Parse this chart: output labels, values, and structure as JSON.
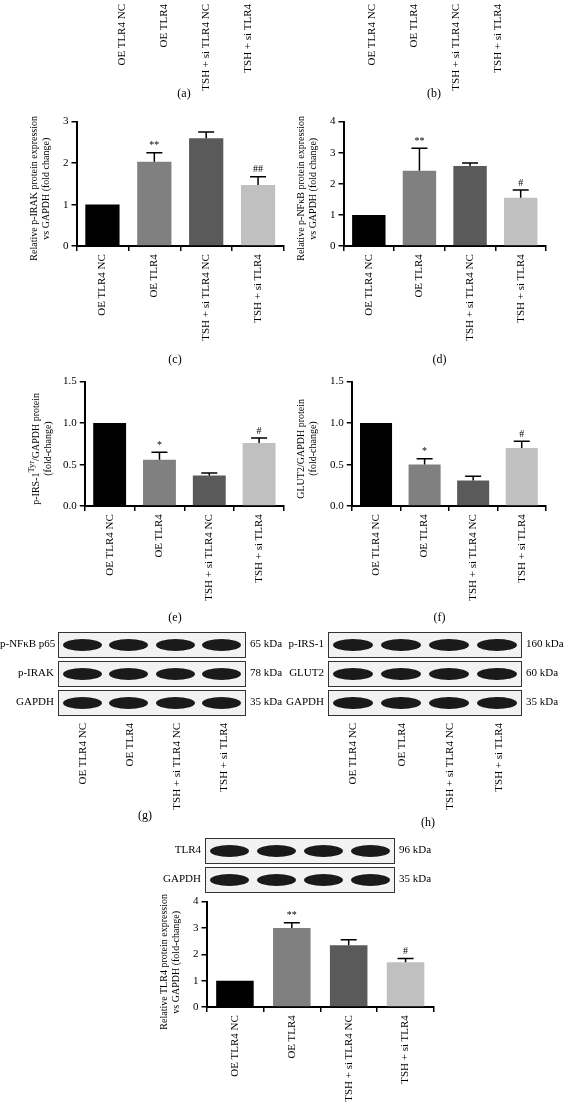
{
  "chart_data": [
    {
      "type": "other",
      "categories": [
        "OE TLR4 NC",
        "OE TLR4",
        "TSH + si TLR4 NC",
        "TSH + si TLR4"
      ],
      "annotations": [
        "(a)"
      ]
    },
    {
      "type": "other",
      "categories": [
        "OE TLR4 NC",
        "OE TLR4",
        "TSH + si TLR4 NC",
        "TSH + si TLR4"
      ],
      "annotations": [
        "(b)"
      ]
    },
    {
      "type": "bar",
      "ylabel": "Relative p-IRAK protein expression\nvs GAPDH (fold change)",
      "categories": [
        "OE TLR4 NC",
        "OE TLR4",
        "TSH + si TLR4 NC",
        "TSH + si TLR4"
      ],
      "values": [
        1,
        2.03,
        2.6,
        1.47
      ],
      "errors": [
        null,
        0.22,
        0.15,
        0.2
      ],
      "colors": [
        "#000000",
        "#808080",
        "#5a5a5a",
        "#c0c0c0"
      ],
      "ylim": [
        0,
        3
      ],
      "yticks": [
        0,
        1,
        2,
        3
      ],
      "grid": false,
      "annotations": [
        {
          "text": "**",
          "x": "OE TLR4",
          "y": 2.25
        },
        {
          "text": "##",
          "x": "TSH + si TLR4",
          "y": 1.67
        },
        "(c)"
      ]
    },
    {
      "type": "bar",
      "ylabel": "Relative p-NFκB protein expression\nvs GAPDH (fold change)",
      "categories": [
        "OE TLR4 NC",
        "OE TLR4",
        "TSH + si TLR4 NC",
        "TSH + si TLR4"
      ],
      "values": [
        1,
        2.42,
        2.57,
        1.55
      ],
      "errors": [
        null,
        0.72,
        0.1,
        0.25
      ],
      "colors": [
        "#000000",
        "#808080",
        "#5a5a5a",
        "#c0c0c0"
      ],
      "ylim": [
        0,
        4
      ],
      "yticks": [
        0,
        1,
        2,
        3,
        4
      ],
      "grid": false,
      "annotations": [
        {
          "text": "**",
          "x": "OE TLR4",
          "y": 3.14
        },
        {
          "text": "#",
          "x": "TSH + si TLR4",
          "y": 1.8
        },
        "(d)"
      ]
    },
    {
      "type": "bar",
      "ylabel": "p-IRS-1$^{Tyr}$/GAPDH protein\n(fold-change)",
      "categories": [
        "OE TLR4 NC",
        "OE TLR4",
        "TSH + si TLR4 NC",
        "TSH + si TLR4"
      ],
      "values": [
        1,
        0.56,
        0.37,
        0.76
      ],
      "errors": [
        null,
        0.09,
        0.03,
        0.06
      ],
      "colors": [
        "#000000",
        "#808080",
        "#5a5a5a",
        "#c0c0c0"
      ],
      "ylim": [
        0,
        1.5
      ],
      "yticks": [
        {
          "value": 0,
          "label": "0.0"
        },
        {
          "value": 0.5,
          "label": "0.5"
        },
        {
          "value": 1,
          "label": "1.0"
        },
        {
          "value": 1.5,
          "label": "1.5"
        }
      ],
      "grid": false,
      "annotations": [
        {
          "text": "*",
          "x": "OE TLR4",
          "y": 0.65
        },
        {
          "text": "#",
          "x": "TSH + si TLR4",
          "y": 0.82
        },
        "(e)"
      ]
    },
    {
      "type": "bar",
      "ylabel": "GLUT2/GAPDH protein\n(fold-change)",
      "categories": [
        "OE TLR4 NC",
        "OE TLR4",
        "TSH + si TLR4 NC",
        "TSH + si TLR4"
      ],
      "values": [
        1,
        0.5,
        0.31,
        0.7
      ],
      "errors": [
        null,
        0.07,
        0.05,
        0.08
      ],
      "colors": [
        "#000000",
        "#808080",
        "#5a5a5a",
        "#c0c0c0"
      ],
      "ylim": [
        0,
        1.5
      ],
      "yticks": [
        {
          "value": 0,
          "label": "0.0"
        },
        {
          "value": 0.5,
          "label": "0.5"
        },
        {
          "value": 1,
          "label": "1.0"
        },
        {
          "value": 1.5,
          "label": "1.5"
        }
      ],
      "grid": false,
      "annotations": [
        {
          "text": "*",
          "x": "OE TLR4",
          "y": 0.57
        },
        {
          "text": "#",
          "x": "TSH + si TLR4",
          "y": 0.78
        },
        "(f)"
      ]
    },
    {
      "type": "other",
      "y_categories": [
        "p-NFκB p65",
        "p-IRAK",
        "GAPDH"
      ],
      "y2_categories": [
        "65 kDa",
        "78 kDa",
        "35 kDa"
      ],
      "categories": [
        "OE TLR4 NC",
        "OE TLR4",
        "TSH + si TLR4 NC",
        "TSH + si TLR4"
      ],
      "annotations": [
        "(g)"
      ]
    },
    {
      "type": "other",
      "y_categories": [
        "p-IRS-1",
        "GLUT2",
        "GAPDH"
      ],
      "y2_categories": [
        "160 kDa",
        "60 kDa",
        "35 kDa"
      ],
      "categories": [
        "OE TLR4 NC",
        "OE TLR4",
        "TSH + si TLR4 NC",
        "TSH + si TLR4"
      ],
      "annotations": [
        "(h)"
      ]
    },
    {
      "type": "other",
      "y_categories": [
        "TLR4",
        "GAPDH"
      ],
      "y2_categories": [
        "96 kDa",
        "35 kDa"
      ]
    },
    {
      "type": "bar",
      "ylabel": "Relative TLR4 protein expression\nvs GAPDH (fold-change)",
      "categories": [
        "OE TLR4 NC",
        "OE TLR4",
        "TSH + si TLR4 NC",
        "TSH + si TLR4"
      ],
      "values": [
        1,
        3.0,
        2.35,
        1.7
      ],
      "errors": [
        null,
        0.2,
        0.2,
        0.14
      ],
      "colors": [
        "#000000",
        "#808080",
        "#5a5a5a",
        "#c0c0c0"
      ],
      "ylim": [
        0,
        4
      ],
      "yticks": [
        0,
        1,
        2,
        3,
        4
      ],
      "grid": false,
      "annotations": [
        {
          "text": "**",
          "x": "OE TLR4",
          "y": 3.2
        },
        {
          "text": "#",
          "x": "TSH + si TLR4",
          "y": 1.84
        }
      ]
    }
  ]
}
